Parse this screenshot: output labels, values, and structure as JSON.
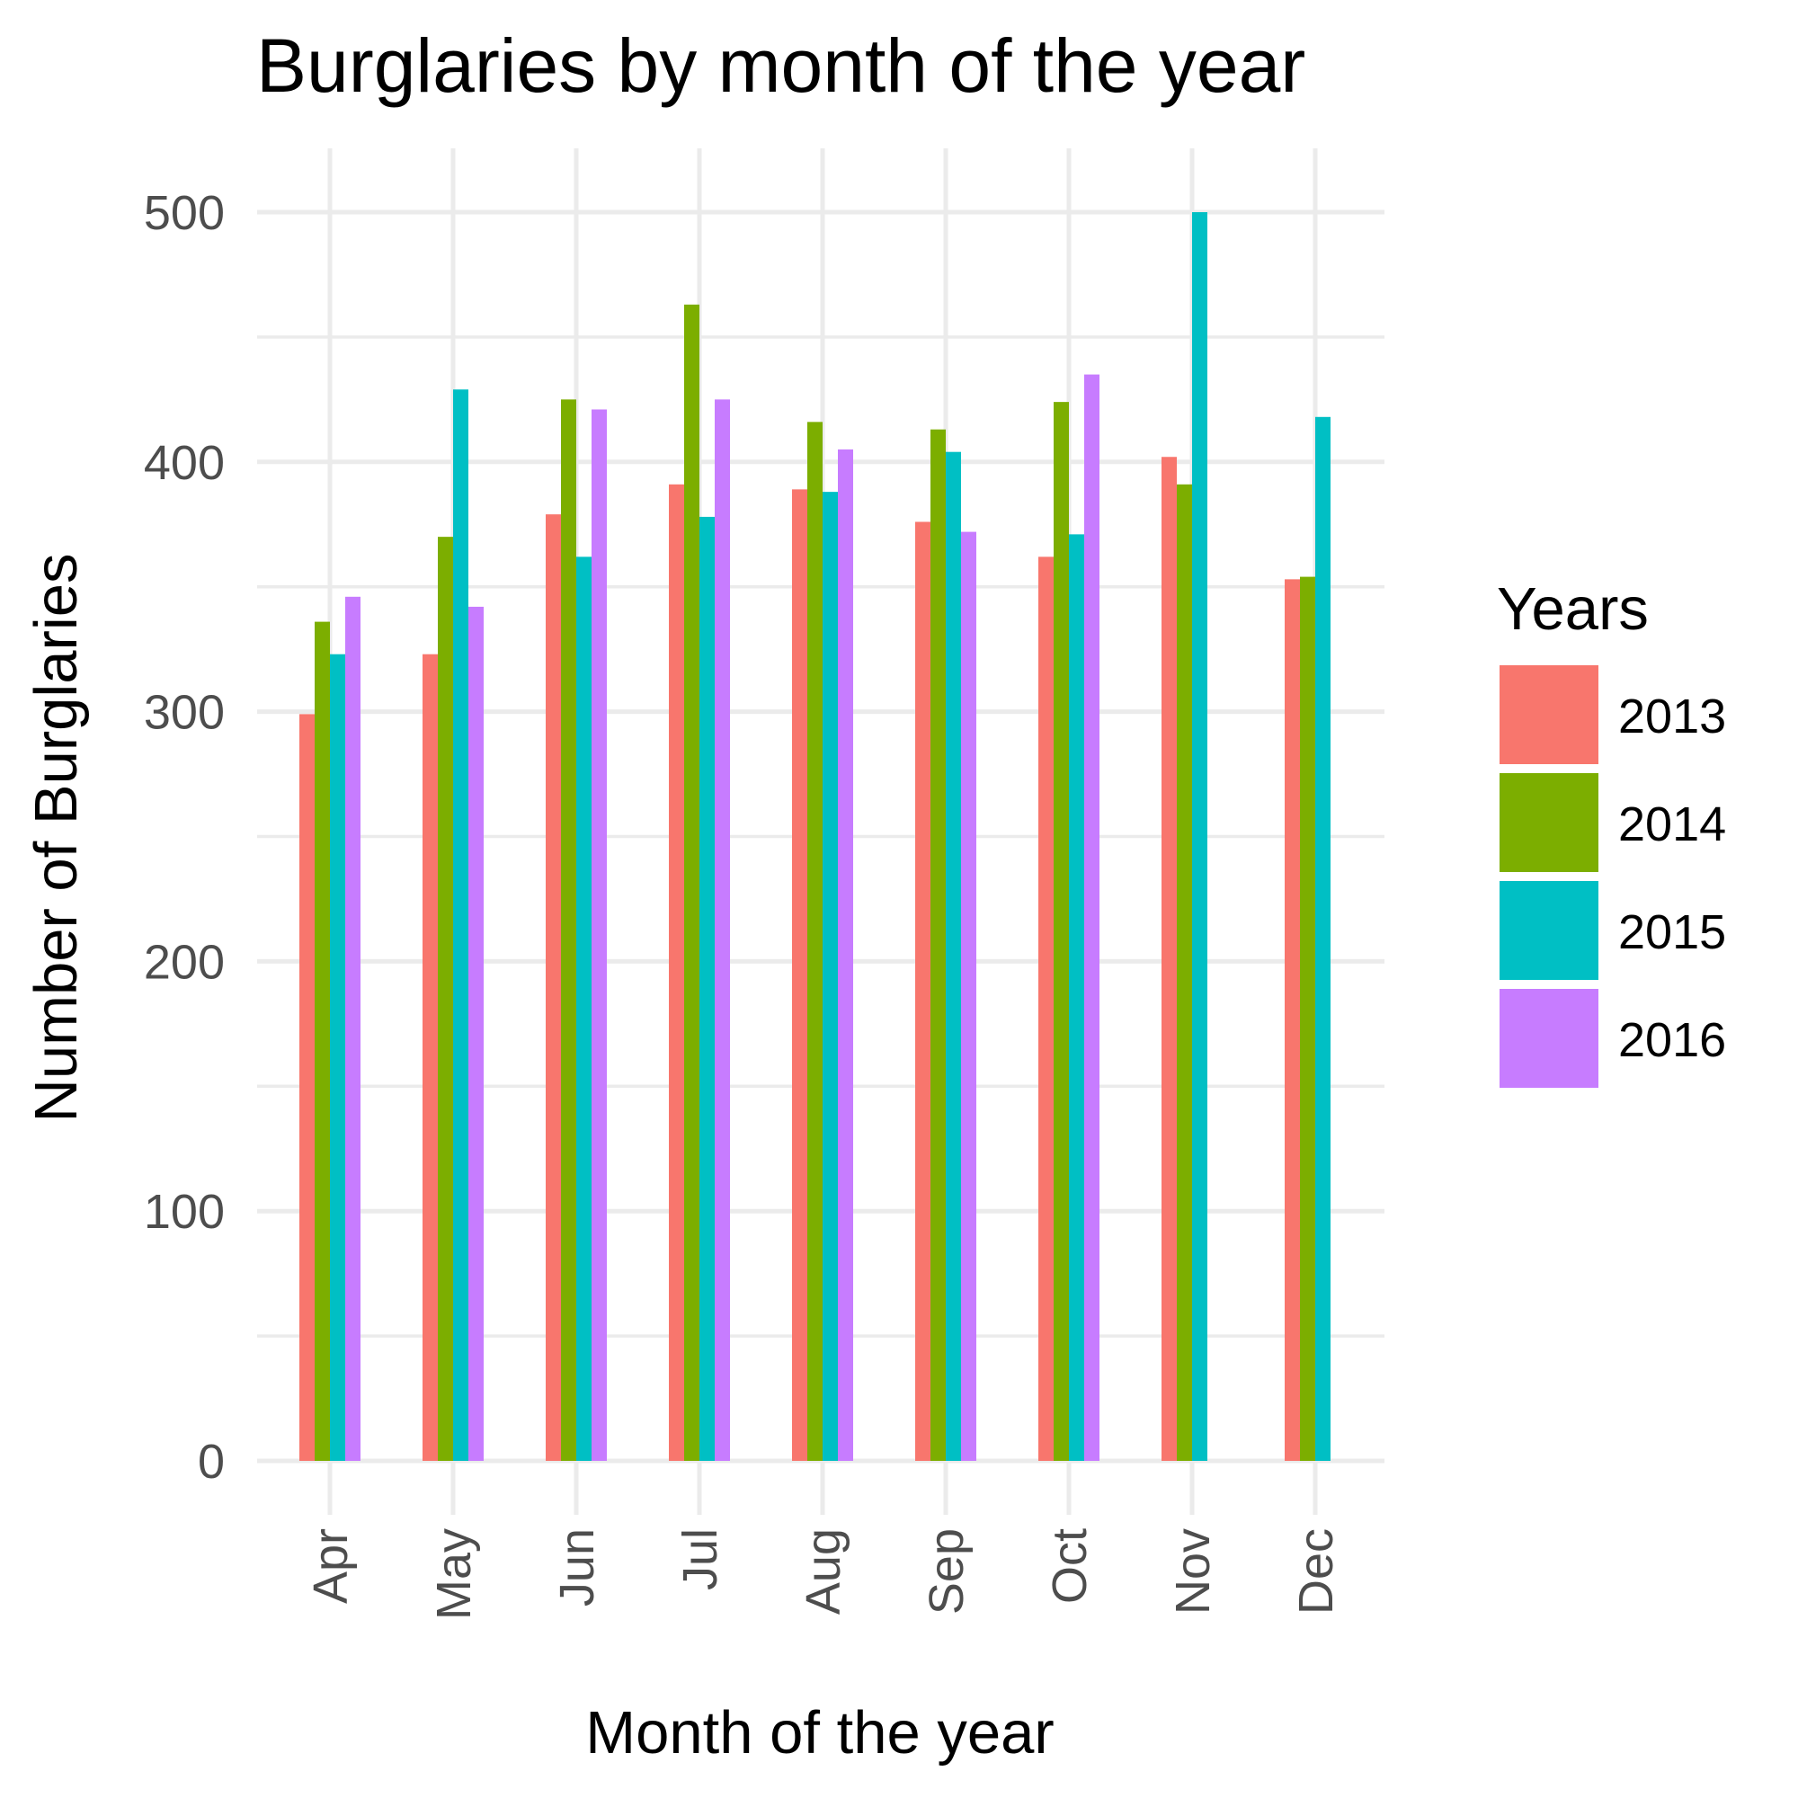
{
  "chart_data": {
    "type": "bar",
    "title": "Burglaries by month of the year",
    "xlabel": "Month of the year",
    "ylabel": "Number of Burglaries",
    "categories": [
      "Apr",
      "May",
      "Jun",
      "Jul",
      "Aug",
      "Sep",
      "Oct",
      "Nov",
      "Dec"
    ],
    "ylim": [
      0,
      500
    ],
    "yticks": [
      0,
      100,
      200,
      300,
      400,
      500
    ],
    "grid": true,
    "legend": {
      "title": "Years",
      "position": "right"
    },
    "series": [
      {
        "name": "2013",
        "color": "#F8766D",
        "values": [
          299,
          323,
          379,
          391,
          389,
          376,
          362,
          402,
          353
        ]
      },
      {
        "name": "2014",
        "color": "#7CAE00",
        "values": [
          336,
          370,
          425,
          463,
          416,
          413,
          424,
          391,
          354
        ]
      },
      {
        "name": "2015",
        "color": "#00BFC4",
        "values": [
          323,
          429,
          362,
          378,
          388,
          404,
          371,
          500,
          418
        ]
      },
      {
        "name": "2016",
        "color": "#C77CFF",
        "values": [
          346,
          342,
          421,
          425,
          405,
          372,
          435,
          null,
          null
        ]
      }
    ]
  }
}
